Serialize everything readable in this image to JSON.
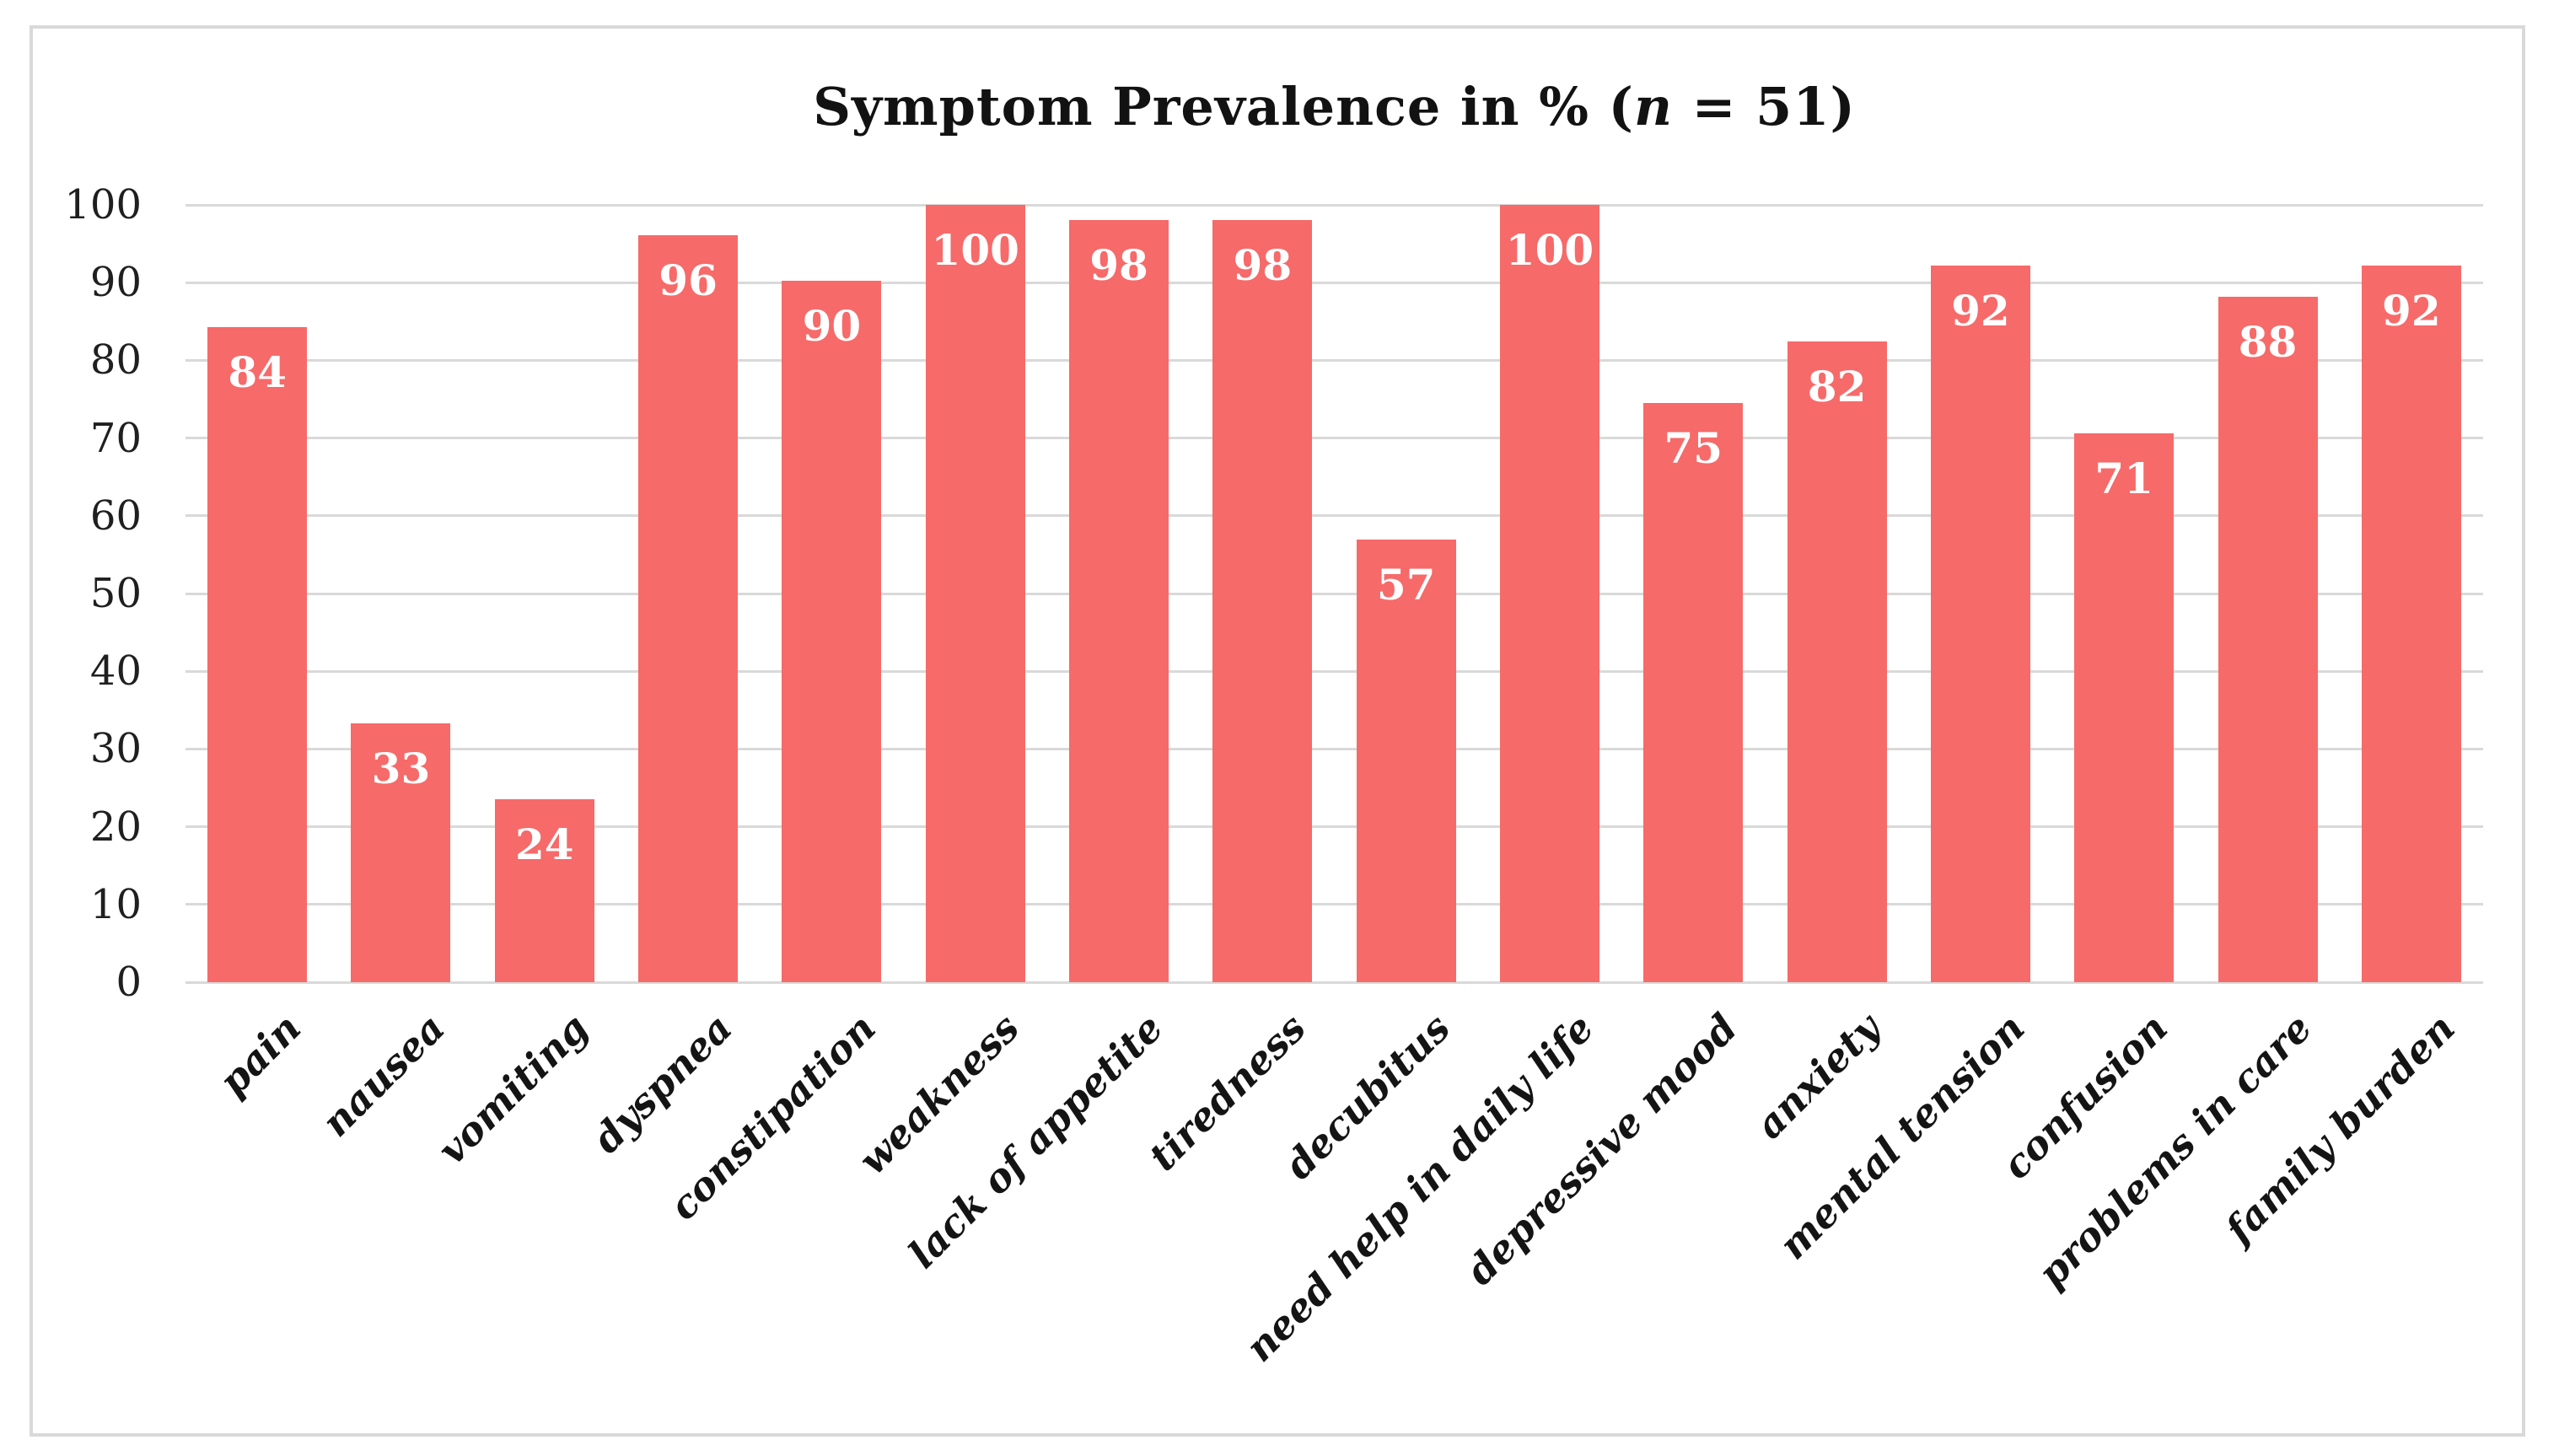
{
  "chart_data": {
    "type": "bar",
    "title": {
      "text": "Symptom Prevalence in % (n = 51)",
      "prefix": "Symptom Prevalence in % (",
      "italic": "n",
      "suffix": " = 51)"
    },
    "categories": [
      "pain",
      "nausea",
      "vomiting",
      "dyspnea",
      "constipation",
      "weakness",
      "lack of appetite",
      "tiredness",
      "decubitus",
      "need help in daily life",
      "depressive mood",
      "anxiety",
      "mental tension",
      "confusion",
      "problems in care",
      "family burden"
    ],
    "values": [
      84,
      33,
      24,
      96,
      90,
      100,
      98,
      98,
      57,
      100,
      75,
      82,
      92,
      71,
      88,
      92
    ],
    "bar_heights_pct": [
      84.3,
      33.3,
      23.5,
      96.1,
      90.2,
      100,
      98,
      98,
      56.9,
      100,
      74.5,
      82.4,
      92.2,
      70.6,
      88.2,
      92.2
    ],
    "xlabel": "",
    "ylabel": "",
    "ylim": [
      0,
      100
    ],
    "yticks": [
      0,
      10,
      20,
      30,
      40,
      50,
      60,
      70,
      80,
      90,
      100
    ],
    "grid": true,
    "legend": "none",
    "colors": {
      "bar": "#F66A6A",
      "bar_label": "#FFFFFF",
      "grid": "#D9D9D9",
      "frame": "#D9D9D9",
      "axis_text": "#1F1F1F",
      "title_text": "#121212",
      "background": "#FFFFFF"
    }
  }
}
